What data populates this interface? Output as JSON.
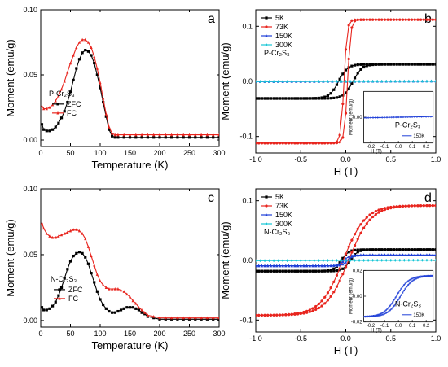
{
  "chart_data": [
    {
      "id": "a",
      "type": "line",
      "panel_label": "a",
      "xlabel": "Temperature (K)",
      "ylabel": "Moment (emu/g)",
      "xlim": [
        0,
        300
      ],
      "ylim": [
        -0.005,
        0.1
      ],
      "xticks": [
        "0",
        "50",
        "100",
        "150",
        "200",
        "250",
        "300"
      ],
      "yticks": [
        {
          "value": 0.0,
          "label": "0.00"
        },
        {
          "value": 0.05,
          "label": "0.05"
        },
        {
          "value": 0.1,
          "label": "0.10"
        }
      ],
      "sample_label": "P-Cr₂S₃",
      "legend_position": "middle-left",
      "series": [
        {
          "name": "ZFC",
          "color": "#000000",
          "marker": "square",
          "x": [
            2,
            5,
            10,
            15,
            20,
            25,
            30,
            35,
            40,
            45,
            50,
            55,
            60,
            65,
            70,
            75,
            80,
            85,
            90,
            95,
            100,
            105,
            110,
            115,
            120,
            125,
            130,
            140,
            150,
            160,
            170,
            180,
            190,
            200,
            210,
            220,
            230,
            240,
            250,
            260,
            270,
            280,
            290,
            300
          ],
          "y": [
            0.012,
            0.008,
            0.007,
            0.007,
            0.008,
            0.01,
            0.013,
            0.017,
            0.022,
            0.029,
            0.037,
            0.046,
            0.055,
            0.062,
            0.067,
            0.069,
            0.068,
            0.065,
            0.059,
            0.05,
            0.04,
            0.029,
            0.018,
            0.008,
            0.003,
            0.002,
            0.002,
            0.002,
            0.002,
            0.002,
            0.002,
            0.002,
            0.002,
            0.002,
            0.002,
            0.002,
            0.002,
            0.002,
            0.002,
            0.002,
            0.002,
            0.002,
            0.002,
            0.002
          ]
        },
        {
          "name": "FC",
          "color": "#e8251e",
          "marker": "triangle",
          "x": [
            2,
            5,
            10,
            15,
            20,
            25,
            30,
            35,
            40,
            45,
            50,
            55,
            60,
            65,
            70,
            75,
            80,
            85,
            90,
            95,
            100,
            105,
            110,
            115,
            120,
            125,
            130,
            140,
            150,
            160,
            170,
            180,
            190,
            200,
            210,
            220,
            230,
            240,
            250,
            260,
            270,
            280,
            290,
            300
          ],
          "y": [
            0.026,
            0.024,
            0.024,
            0.025,
            0.027,
            0.03,
            0.034,
            0.039,
            0.045,
            0.052,
            0.059,
            0.065,
            0.071,
            0.075,
            0.077,
            0.077,
            0.075,
            0.071,
            0.064,
            0.055,
            0.044,
            0.032,
            0.02,
            0.01,
            0.005,
            0.004,
            0.004,
            0.004,
            0.004,
            0.004,
            0.004,
            0.004,
            0.004,
            0.004,
            0.004,
            0.004,
            0.004,
            0.004,
            0.004,
            0.004,
            0.004,
            0.004,
            0.004,
            0.004
          ]
        }
      ]
    },
    {
      "id": "b",
      "type": "line",
      "panel_label": "b",
      "xlabel": "H (T)",
      "ylabel": "Moment (emu/g)",
      "xlim": [
        -1.0,
        1.0
      ],
      "ylim": [
        -0.13,
        0.13
      ],
      "xticks": [
        {
          "value": -1.0,
          "label": "-1.0"
        },
        {
          "value": -0.5,
          "label": "-0.5"
        },
        {
          "value": 0.0,
          "label": "0.0"
        },
        {
          "value": 0.5,
          "label": "0.5"
        },
        {
          "value": 1.0,
          "label": "1.0"
        }
      ],
      "yticks": [
        {
          "value": -0.1,
          "label": "-0.1"
        },
        {
          "value": 0.0,
          "label": "0.0"
        },
        {
          "value": 0.1,
          "label": "0.1"
        }
      ],
      "sample_label": "P-Cr₂S₃",
      "legend_position": "top-left",
      "series": [
        {
          "name": "5K",
          "color": "#000000",
          "marker": "square",
          "type": "loop",
          "ms": 0.031,
          "hc": 0.08,
          "w": 0.1
        },
        {
          "name": "73K",
          "color": "#e8251e",
          "marker": "circle",
          "type": "loop",
          "ms": 0.112,
          "hc": 0.02,
          "w": 0.035
        },
        {
          "name": "150K",
          "color": "#1f3fd8",
          "marker": "triangle",
          "type": "linear",
          "slope": 0.0005
        },
        {
          "name": "300K",
          "color": "#16c6d6",
          "marker": "diamond",
          "type": "linear",
          "slope": 0.0003
        }
      ],
      "inset": {
        "xlim": [
          -0.25,
          0.25
        ],
        "ylim": [
          -0.02,
          0.02
        ],
        "xticks": [
          "-0.2",
          "-0.1",
          "0.0",
          "0.1",
          "0.2"
        ],
        "xtick_values": [
          -0.2,
          -0.1,
          0.0,
          0.1,
          0.2
        ],
        "yticks": [
          "0.00"
        ],
        "ytick_values": [
          0.0
        ],
        "xlabel": "H (T)",
        "ylabel": "Moment (emu/g)",
        "sample_label": "P-Cr₂S₃",
        "series": [
          {
            "name": "150K",
            "color": "#1f3fd8",
            "type": "linear",
            "slope": 0.002
          }
        ]
      }
    },
    {
      "id": "c",
      "type": "line",
      "panel_label": "c",
      "xlabel": "Temperature (K)",
      "ylabel": "Moment (emu/g)",
      "xlim": [
        0,
        300
      ],
      "ylim": [
        -0.005,
        0.1
      ],
      "xticks": [
        "0",
        "50",
        "100",
        "150",
        "200",
        "250",
        "300"
      ],
      "yticks": [
        {
          "value": 0.0,
          "label": "0.00"
        },
        {
          "value": 0.05,
          "label": "0.05"
        },
        {
          "value": 0.1,
          "label": "0.10"
        }
      ],
      "sample_label": "N-Cr₂S₃",
      "legend_position": "bottom-middle",
      "series": [
        {
          "name": "ZFC",
          "color": "#000000",
          "marker": "square",
          "x": [
            2,
            5,
            10,
            15,
            20,
            25,
            30,
            35,
            40,
            45,
            50,
            55,
            60,
            65,
            70,
            75,
            80,
            85,
            90,
            95,
            100,
            105,
            110,
            115,
            120,
            125,
            130,
            135,
            140,
            145,
            150,
            155,
            160,
            165,
            170,
            175,
            180,
            190,
            200,
            210,
            220,
            230,
            240,
            250,
            260,
            270,
            280,
            290,
            300
          ],
          "y": [
            0.01,
            0.008,
            0.008,
            0.009,
            0.011,
            0.014,
            0.019,
            0.025,
            0.032,
            0.039,
            0.045,
            0.049,
            0.051,
            0.052,
            0.051,
            0.048,
            0.043,
            0.036,
            0.029,
            0.022,
            0.016,
            0.012,
            0.009,
            0.007,
            0.006,
            0.006,
            0.007,
            0.008,
            0.009,
            0.01,
            0.01,
            0.01,
            0.009,
            0.008,
            0.006,
            0.005,
            0.003,
            0.002,
            0.001,
            0.001,
            0.001,
            0.001,
            0.001,
            0.001,
            0.001,
            0.001,
            0.001,
            0.001,
            0.001
          ]
        },
        {
          "name": "FC",
          "color": "#e8251e",
          "marker": "triangle",
          "x": [
            2,
            5,
            10,
            15,
            20,
            25,
            30,
            35,
            40,
            45,
            50,
            55,
            60,
            65,
            70,
            75,
            80,
            85,
            90,
            95,
            100,
            105,
            110,
            115,
            120,
            125,
            130,
            135,
            140,
            145,
            150,
            155,
            160,
            165,
            170,
            175,
            180,
            190,
            200,
            210,
            220,
            230,
            240,
            250,
            260,
            270,
            280,
            290,
            300
          ],
          "y": [
            0.074,
            0.07,
            0.066,
            0.064,
            0.063,
            0.063,
            0.064,
            0.065,
            0.066,
            0.067,
            0.068,
            0.069,
            0.069,
            0.068,
            0.066,
            0.062,
            0.056,
            0.049,
            0.042,
            0.035,
            0.03,
            0.027,
            0.025,
            0.024,
            0.024,
            0.024,
            0.024,
            0.023,
            0.022,
            0.02,
            0.018,
            0.015,
            0.013,
            0.01,
            0.008,
            0.006,
            0.004,
            0.003,
            0.002,
            0.002,
            0.002,
            0.002,
            0.002,
            0.002,
            0.002,
            0.002,
            0.002,
            0.002,
            0.002
          ]
        }
      ]
    },
    {
      "id": "d",
      "type": "line",
      "panel_label": "d",
      "xlabel": "H (T)",
      "ylabel": "Moment (emu/g)",
      "xlim": [
        -1.0,
        1.0
      ],
      "ylim": [
        -0.12,
        0.12
      ],
      "xticks": [
        {
          "value": -1.0,
          "label": "-1.0"
        },
        {
          "value": -0.5,
          "label": "-0.5"
        },
        {
          "value": 0.0,
          "label": "0.0"
        },
        {
          "value": 0.5,
          "label": "0.5"
        },
        {
          "value": 1.0,
          "label": "1.0"
        }
      ],
      "yticks": [
        {
          "value": -0.1,
          "label": "-0.1"
        },
        {
          "value": 0.0,
          "label": "0.0"
        },
        {
          "value": 0.1,
          "label": "0.1"
        }
      ],
      "sample_label": "N-Cr₂S₃",
      "legend_position": "top-left",
      "series": [
        {
          "name": "5K",
          "color": "#000000",
          "marker": "square",
          "type": "loop",
          "ms": 0.018,
          "hc": 0.05,
          "w": 0.08
        },
        {
          "name": "73K",
          "color": "#e8251e",
          "marker": "circle",
          "type": "loop",
          "ms": 0.092,
          "hc": 0.03,
          "w": 0.25
        },
        {
          "name": "150K",
          "color": "#1f3fd8",
          "marker": "triangle",
          "type": "loop",
          "ms": 0.009,
          "hc": 0.02,
          "w": 0.06
        },
        {
          "name": "300K",
          "color": "#16c6d6",
          "marker": "diamond",
          "type": "linear",
          "slope": 0.0004
        }
      ],
      "inset": {
        "xlim": [
          -0.25,
          0.25
        ],
        "ylim": [
          -0.02,
          0.02
        ],
        "xticks": [
          "-0.2",
          "-0.1",
          "0.0",
          "0.1",
          "0.2"
        ],
        "xtick_values": [
          -0.2,
          -0.1,
          0.0,
          0.1,
          0.2
        ],
        "yticks": [
          "-0.02",
          "0.00",
          "0.02"
        ],
        "ytick_values": [
          -0.02,
          0.0,
          0.02
        ],
        "xlabel": "H (T)",
        "ylabel": "Moment (emu/g)",
        "sample_label": "N-Cr₂S₃",
        "series": [
          {
            "name": "150K",
            "color": "#1f3fd8",
            "type": "loop",
            "ms": 0.02,
            "hc": 0.015,
            "w": 0.09
          }
        ]
      }
    }
  ]
}
